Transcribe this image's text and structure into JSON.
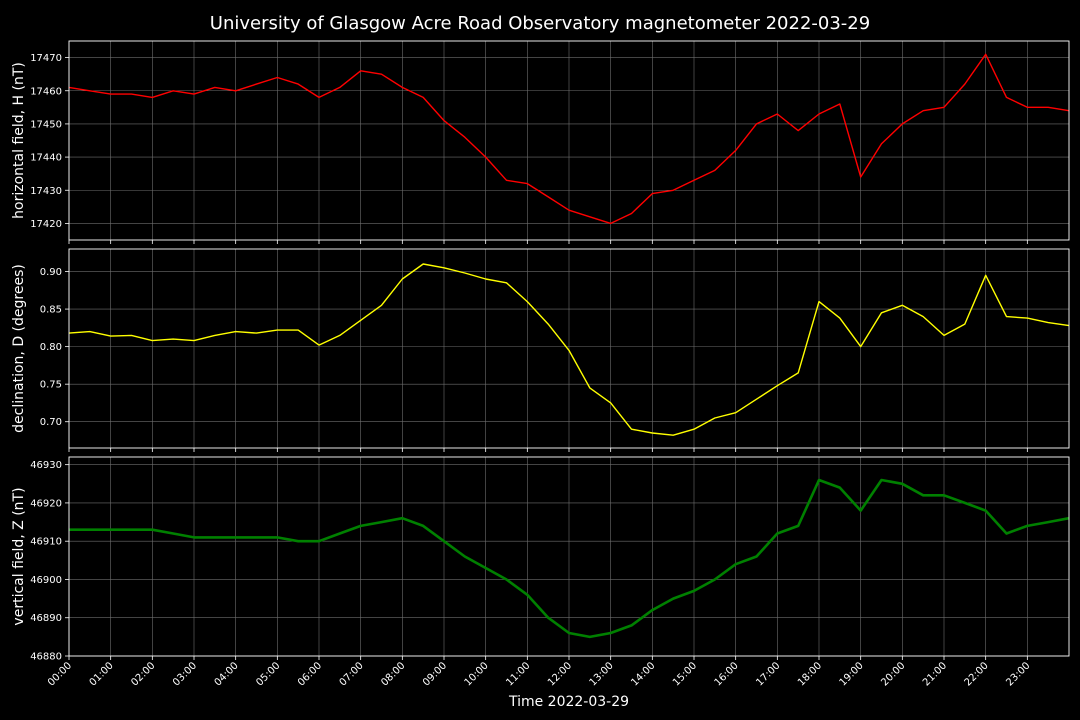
{
  "chart_data": {
    "type": "line",
    "title": "University of Glasgow Acre Road Observatory magnetometer 2022-03-29",
    "xlabel": "Time 2022-03-29",
    "x_ticks": [
      "00:00",
      "01:00",
      "02:00",
      "03:00",
      "04:00",
      "05:00",
      "06:00",
      "07:00",
      "08:00",
      "09:00",
      "10:00",
      "11:00",
      "12:00",
      "13:00",
      "14:00",
      "15:00",
      "16:00",
      "17:00",
      "18:00",
      "19:00",
      "20:00",
      "21:00",
      "22:00",
      "23:00"
    ],
    "x_range": [
      "00:00",
      "24:00"
    ],
    "grid": true,
    "x": [
      "00:00",
      "00:30",
      "01:00",
      "01:30",
      "02:00",
      "02:30",
      "03:00",
      "03:30",
      "04:00",
      "04:30",
      "05:00",
      "05:30",
      "06:00",
      "06:30",
      "07:00",
      "07:30",
      "08:00",
      "08:30",
      "09:00",
      "09:30",
      "10:00",
      "10:30",
      "11:00",
      "11:30",
      "12:00",
      "12:30",
      "13:00",
      "13:30",
      "14:00",
      "14:30",
      "15:00",
      "15:30",
      "16:00",
      "16:30",
      "17:00",
      "17:30",
      "18:00",
      "18:30",
      "19:00",
      "19:30",
      "20:00",
      "20:30",
      "21:00",
      "21:30",
      "22:00",
      "22:30",
      "23:00",
      "23:30",
      "24:00"
    ],
    "panels": [
      {
        "ylabel": "horizontal field, H (nT)",
        "color": "#ff0000",
        "ylim": [
          17415,
          17475
        ],
        "yticks": [
          17420,
          17430,
          17440,
          17450,
          17460,
          17470
        ],
        "values": [
          17461,
          17460,
          17459,
          17459,
          17458,
          17460,
          17459,
          17461,
          17460,
          17462,
          17464,
          17462,
          17458,
          17461,
          17466,
          17465,
          17461,
          17458,
          17451,
          17446,
          17440,
          17433,
          17432,
          17428,
          17424,
          17422,
          17420,
          17423,
          17429,
          17430,
          17433,
          17436,
          17442,
          17450,
          17453,
          17448,
          17453,
          17456,
          17434,
          17444,
          17450,
          17454,
          17455,
          17462,
          17471,
          17458,
          17455,
          17455,
          17454
        ]
      },
      {
        "ylabel": "declination, D (degrees)",
        "color": "#ffff00",
        "ylim": [
          0.665,
          0.93
        ],
        "yticks": [
          0.7,
          0.75,
          0.8,
          0.85,
          0.9
        ],
        "values": [
          0.818,
          0.82,
          0.814,
          0.815,
          0.808,
          0.81,
          0.808,
          0.815,
          0.82,
          0.818,
          0.822,
          0.822,
          0.802,
          0.815,
          0.835,
          0.855,
          0.89,
          0.91,
          0.905,
          0.898,
          0.89,
          0.885,
          0.86,
          0.83,
          0.795,
          0.745,
          0.725,
          0.69,
          0.685,
          0.682,
          0.69,
          0.705,
          0.712,
          0.73,
          0.748,
          0.765,
          0.86,
          0.838,
          0.8,
          0.845,
          0.855,
          0.84,
          0.815,
          0.83,
          0.895,
          0.84,
          0.838,
          0.832,
          0.828
        ]
      },
      {
        "ylabel": "vertical field, Z (nT)",
        "color": "#008000",
        "ylim": [
          46880,
          46932
        ],
        "yticks": [
          46880,
          46890,
          46900,
          46910,
          46920,
          46930
        ],
        "values": [
          46913,
          46913,
          46913,
          46913,
          46913,
          46912,
          46911,
          46911,
          46911,
          46911,
          46911,
          46910,
          46910,
          46912,
          46914,
          46915,
          46916,
          46914,
          46910,
          46906,
          46903,
          46900,
          46896,
          46890,
          46886,
          46885,
          46886,
          46888,
          46892,
          46895,
          46897,
          46900,
          46904,
          46906,
          46912,
          46914,
          46926,
          46924,
          46918,
          46926,
          46925,
          46922,
          46922,
          46920,
          46918,
          46912,
          46914,
          46915,
          46916
        ]
      }
    ]
  }
}
